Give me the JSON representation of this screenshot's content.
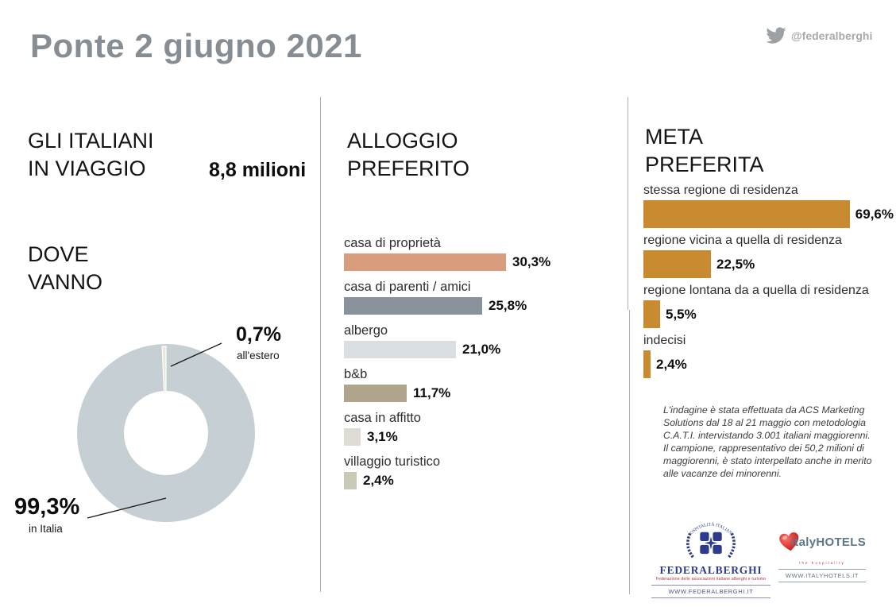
{
  "header": {
    "title": "Ponte 2 giugno 2021",
    "twitter_handle": "@federalberghi"
  },
  "left": {
    "heading_travelers": [
      "GLI ITALIANI",
      "IN VIAGGIO"
    ],
    "travelers_value": "8,8 milioni",
    "heading_destination": [
      "DOVE",
      "VANNO"
    ]
  },
  "middle": {
    "heading": [
      "ALLOGGIO",
      "PREFERITO"
    ]
  },
  "right": {
    "heading": [
      "META",
      "PREFERITA"
    ],
    "footnote": [
      "L'indagine è stata effettuata da ACS Marketing Solutions dal 18 al 21 maggio con metodologia C.A.T.I. intervistando 3.001 italiani maggiorenni.",
      "Il campione, rappresentativo dei 50,2 milioni di maggiorenni, è stato interpellato anche in merito alle vacanze dei minorenni."
    ]
  },
  "logos": {
    "federalberghi": {
      "emblem_text": "L'OSPITALITÀ ITALIANA",
      "name": "FEDERALBERGHI",
      "tagline": "Federazione delle associazioni italiane alberghi e turismo",
      "url": "WWW.FEDERALBERGHI.IT"
    },
    "italyhotels": {
      "name": "italyHOTELS",
      "tagline": "the hospitality",
      "url": "WWW.ITALYHOTELS.IT"
    }
  },
  "chart_data": [
    {
      "type": "pie",
      "donut": true,
      "title": "DOVE VANNO",
      "labels": [
        "in Italia",
        "all'estero"
      ],
      "values": [
        99.3,
        0.7
      ],
      "value_labels": [
        "99,3%",
        "0,7%"
      ],
      "colors": [
        "#C6CFD3",
        "#E9E6DA"
      ]
    },
    {
      "type": "bar",
      "orientation": "horizontal",
      "title": "ALLOGGIO PREFERITO",
      "categories": [
        "casa di proprietà",
        "casa di parenti / amici",
        "albergo",
        "b&b",
        "casa in affitto",
        "villaggio turistico"
      ],
      "values": [
        30.3,
        25.8,
        21.0,
        11.7,
        3.1,
        2.4
      ],
      "value_labels": [
        "30,3%",
        "25,8%",
        "21,0%",
        "11,7%",
        "3,1%",
        "2,4%"
      ],
      "colors": [
        "#D99C7C",
        "#8A939B",
        "#D9DEE2",
        "#B1A48C",
        "#DFDCD3",
        "#C9CAB5"
      ],
      "xlim": [
        0,
        33
      ],
      "value_label_position": "right-of-bar",
      "grid": false
    },
    {
      "type": "bar",
      "orientation": "horizontal",
      "title": "META PREFERITA",
      "categories": [
        "stessa regione di residenza",
        "regione vicina a quella di residenza",
        "regione lontana da a quella di residenza",
        "indecisi"
      ],
      "values": [
        69.6,
        22.5,
        5.5,
        2.4
      ],
      "value_labels": [
        "69,6%",
        "22,5%",
        "5,5%",
        "2,4%"
      ],
      "colors": [
        "#C98B30",
        "#C98B30",
        "#C98B30",
        "#C98B30"
      ],
      "xlim": [
        0,
        72
      ],
      "value_label_position": "right-of-bar",
      "grid": false
    }
  ]
}
